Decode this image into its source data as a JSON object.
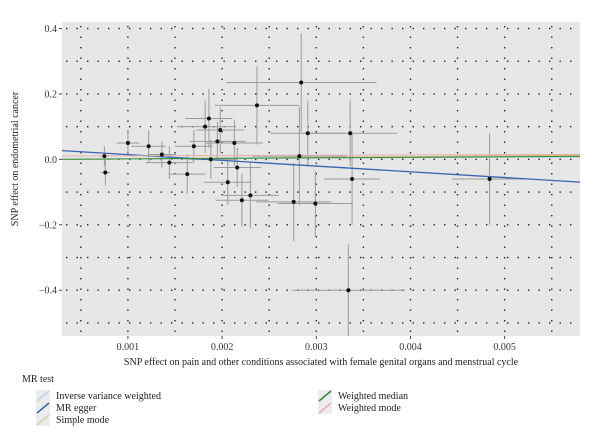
{
  "chart_data": {
    "type": "scatter",
    "xlabel": "SNP effect on pain and other conditions associated with female genital organs and menstrual cycle",
    "ylabel": "SNP effect on endometrial cancer",
    "xlim": [
      0.0003,
      0.0058
    ],
    "ylim": [
      -0.54,
      0.42
    ],
    "x_ticks": [
      0.001,
      0.002,
      0.003,
      0.004,
      0.005
    ],
    "x_tick_labels": [
      "0.001",
      "0.002",
      "0.003",
      "0.004",
      "0.005"
    ],
    "y_ticks": [
      -0.4,
      -0.2,
      0.0,
      0.2,
      0.4
    ],
    "y_tick_labels": [
      "−0.4",
      "−0.2",
      "0.0",
      "0.2",
      "0.4"
    ],
    "grid": true,
    "background": "#e6e6e6",
    "legend_title": "MR test",
    "legend_position": "bottom",
    "points": [
      {
        "x": 0.00075,
        "y": 0.01,
        "xerr": 5e-05,
        "yerr": 0.03
      },
      {
        "x": 0.00076,
        "y": -0.04,
        "xerr": 5e-05,
        "yerr": 0.04
      },
      {
        "x": 0.001,
        "y": 0.05,
        "xerr": 0.00012,
        "yerr": 0.04
      },
      {
        "x": 0.00122,
        "y": 0.04,
        "xerr": 0.00018,
        "yerr": 0.05
      },
      {
        "x": 0.00136,
        "y": 0.015,
        "xerr": 0.00015,
        "yerr": 0.04
      },
      {
        "x": 0.00144,
        "y": -0.01,
        "xerr": 0.00025,
        "yerr": 0.05
      },
      {
        "x": 0.00163,
        "y": -0.045,
        "xerr": 0.0002,
        "yerr": 0.06
      },
      {
        "x": 0.0017,
        "y": 0.04,
        "xerr": 0.0002,
        "yerr": 0.05
      },
      {
        "x": 0.00182,
        "y": 0.1,
        "xerr": 0.0003,
        "yerr": 0.08
      },
      {
        "x": 0.00186,
        "y": 0.125,
        "xerr": 0.00025,
        "yerr": 0.09
      },
      {
        "x": 0.00188,
        "y": 0.0,
        "xerr": 0.00028,
        "yerr": 0.06
      },
      {
        "x": 0.00195,
        "y": 0.055,
        "xerr": 0.0003,
        "yerr": 0.06
      },
      {
        "x": 0.00198,
        "y": 0.09,
        "xerr": 0.00025,
        "yerr": 0.07
      },
      {
        "x": 0.00206,
        "y": -0.07,
        "xerr": 0.00025,
        "yerr": 0.07
      },
      {
        "x": 0.00213,
        "y": 0.05,
        "xerr": 0.0003,
        "yerr": 0.07
      },
      {
        "x": 0.00216,
        "y": -0.025,
        "xerr": 0.00025,
        "yerr": 0.06
      },
      {
        "x": 0.00221,
        "y": -0.125,
        "xerr": 0.00028,
        "yerr": 0.08
      },
      {
        "x": 0.0023,
        "y": -0.11,
        "xerr": 0.0003,
        "yerr": 0.1
      },
      {
        "x": 0.00237,
        "y": 0.165,
        "xerr": 0.00045,
        "yerr": 0.12
      },
      {
        "x": 0.00276,
        "y": -0.13,
        "xerr": 0.0004,
        "yerr": 0.12
      },
      {
        "x": 0.00282,
        "y": 0.01,
        "xerr": 0.0005,
        "yerr": 0.15
      },
      {
        "x": 0.00284,
        "y": 0.235,
        "xerr": 0.0008,
        "yerr": 0.15
      },
      {
        "x": 0.00291,
        "y": 0.08,
        "xerr": 0.0004,
        "yerr": 0.1
      },
      {
        "x": 0.00299,
        "y": -0.135,
        "xerr": 0.0004,
        "yerr": 0.1
      },
      {
        "x": 0.00334,
        "y": -0.4,
        "xerr": 0.0006,
        "yerr": 0.14
      },
      {
        "x": 0.00336,
        "y": 0.08,
        "xerr": 0.0005,
        "yerr": 0.1
      },
      {
        "x": 0.00338,
        "y": -0.06,
        "xerr": 0.0003,
        "yerr": 0.14
      },
      {
        "x": 0.00484,
        "y": -0.06,
        "xerr": 0.0004,
        "yerr": 0.14
      }
    ],
    "lines": [
      {
        "name": "Inverse variance weighted",
        "color": "#b9d3ea",
        "slope": 1.2,
        "intercept": 0.0,
        "width": 1
      },
      {
        "name": "MR egger",
        "color": "#3b63ad",
        "slope": -17.5,
        "intercept": 0.032,
        "width": 1.3
      },
      {
        "name": "Simple mode",
        "color": "#c5dba6",
        "slope": 2.0,
        "intercept": -0.001,
        "width": 1
      },
      {
        "name": "Weighted median",
        "color": "#2e8b3d",
        "slope": 1.6,
        "intercept": 0.0,
        "width": 1
      },
      {
        "name": "Weighted mode",
        "color": "#e7aeb0",
        "slope": 0.9,
        "intercept": 0.01,
        "width": 1
      }
    ],
    "reference_line": {
      "slope": 2.3,
      "intercept": -0.001,
      "color": "#d9a441"
    }
  }
}
